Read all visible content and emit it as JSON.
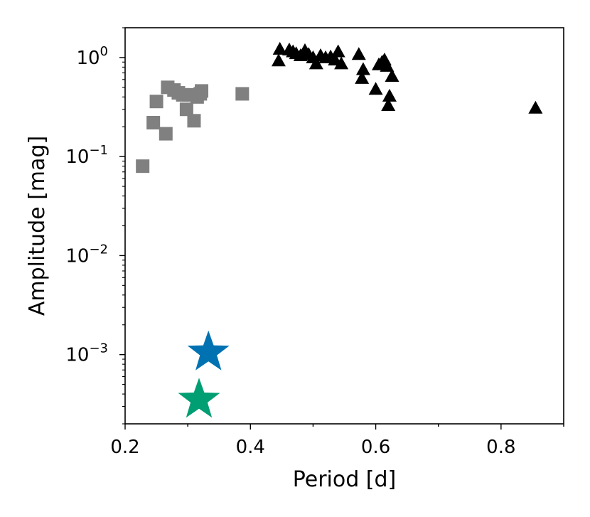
{
  "chart_data": {
    "type": "scatter",
    "xlabel": "Period [d]",
    "ylabel": "Amplitude [mag]",
    "xlim": [
      0.2,
      0.9
    ],
    "ylim": [
      0.0002,
      2.0
    ],
    "yscale": "log",
    "x_ticks": [
      "0.2",
      "0.4",
      "0.6",
      "0.8"
    ],
    "y_tick_base": "10",
    "y_tick_exponents": [
      "0",
      "−1",
      "−2",
      "−3"
    ],
    "grid": false,
    "series": [
      {
        "marker": "square",
        "color": "#808080",
        "points": [
          [
            0.228,
            0.08
          ],
          [
            0.245,
            0.22
          ],
          [
            0.25,
            0.36
          ],
          [
            0.265,
            0.17
          ],
          [
            0.268,
            0.5
          ],
          [
            0.278,
            0.47
          ],
          [
            0.285,
            0.44
          ],
          [
            0.292,
            0.42
          ],
          [
            0.298,
            0.3
          ],
          [
            0.302,
            0.42
          ],
          [
            0.31,
            0.23
          ],
          [
            0.315,
            0.4
          ],
          [
            0.32,
            0.43
          ],
          [
            0.322,
            0.46
          ],
          [
            0.387,
            0.43
          ]
        ]
      },
      {
        "marker": "triangle",
        "color": "#000000",
        "points": [
          [
            0.445,
            0.93
          ],
          [
            0.447,
            1.22
          ],
          [
            0.462,
            1.2
          ],
          [
            0.468,
            1.15
          ],
          [
            0.473,
            1.1
          ],
          [
            0.48,
            1.05
          ],
          [
            0.487,
            1.18
          ],
          [
            0.493,
            1.08
          ],
          [
            0.5,
            1.0
          ],
          [
            0.505,
            0.87
          ],
          [
            0.512,
            1.05
          ],
          [
            0.52,
            1.0
          ],
          [
            0.528,
            1.02
          ],
          [
            0.535,
            0.95
          ],
          [
            0.54,
            1.15
          ],
          [
            0.545,
            0.87
          ],
          [
            0.573,
            1.08
          ],
          [
            0.578,
            0.62
          ],
          [
            0.58,
            0.76
          ],
          [
            0.6,
            0.48
          ],
          [
            0.605,
            0.85
          ],
          [
            0.61,
            0.9
          ],
          [
            0.614,
            0.95
          ],
          [
            0.618,
            0.82
          ],
          [
            0.62,
            0.33
          ],
          [
            0.622,
            0.41
          ],
          [
            0.626,
            0.65
          ],
          [
            0.855,
            0.31
          ]
        ]
      },
      {
        "marker": "star",
        "color": "#0072B2",
        "points": [
          [
            0.333,
            0.00105
          ]
        ]
      },
      {
        "marker": "star",
        "color": "#009E73",
        "points": [
          [
            0.318,
            0.00035
          ]
        ]
      }
    ]
  }
}
